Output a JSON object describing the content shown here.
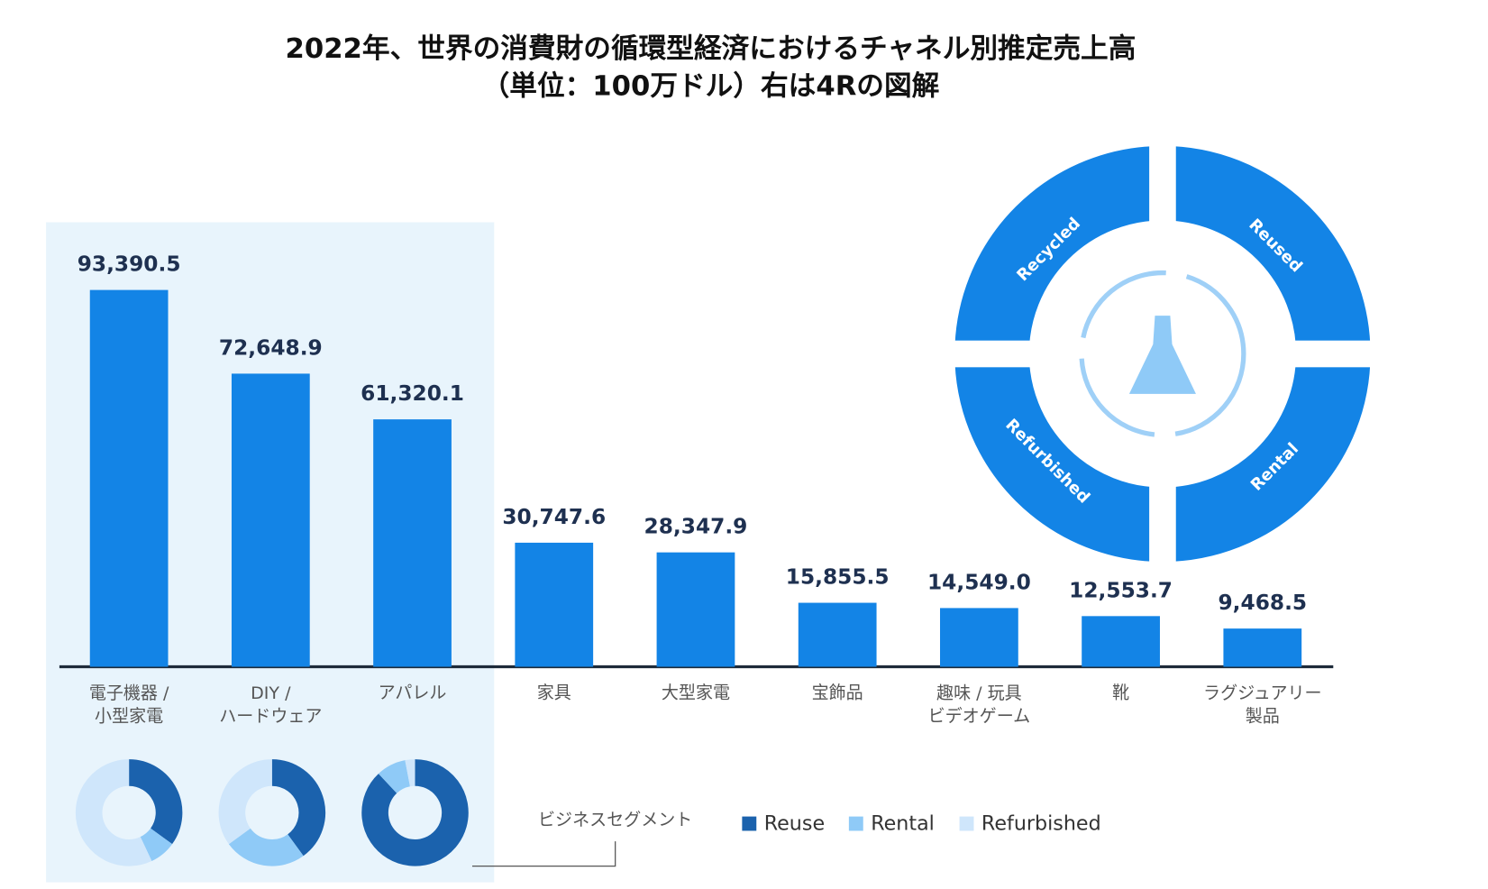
{
  "chart_data": [
    {
      "type": "bar",
      "title": "2022年、世界の消費財の循環型経済におけるチャネル別推定売上高\n（単位：100万ドル）右は4Rの図解",
      "categories": [
        "電子機器 /\n小型家電",
        "DIY /\nハードウェア",
        "アパレル",
        "家具",
        "大型家電",
        "宝飾品",
        "趣味 / 玩具\nビデオゲーム",
        "靴",
        "ラグジュアリー\n製品"
      ],
      "values": [
        93390.5,
        72648.9,
        61320.1,
        30747.6,
        28347.9,
        15855.5,
        14549.0,
        12553.7,
        9468.5
      ],
      "value_labels": [
        "93,390.5",
        "72,648.9",
        "61,320.1",
        "30,747.6",
        "28,347.9",
        "15,855.5",
        "14,549.0",
        "12,553.7",
        "9,468.5"
      ],
      "color": "#1384e6"
    },
    {
      "type": "donut",
      "legend_title": "ビジネスセグメント",
      "series": [
        {
          "name": "Reuse",
          "color": "#1b62ad",
          "values": [
            35,
            40,
            88
          ]
        },
        {
          "name": "Rental",
          "color": "#8fcaf7",
          "values": [
            8,
            25,
            9
          ]
        },
        {
          "name": "Refurbished",
          "color": "#cfe6fb",
          "values": [
            57,
            35,
            3
          ]
        }
      ]
    },
    {
      "type": "cycle",
      "segments": [
        "Recycled",
        "Reused",
        "Refurbished",
        "Rental"
      ],
      "color": "#1384e6"
    }
  ]
}
